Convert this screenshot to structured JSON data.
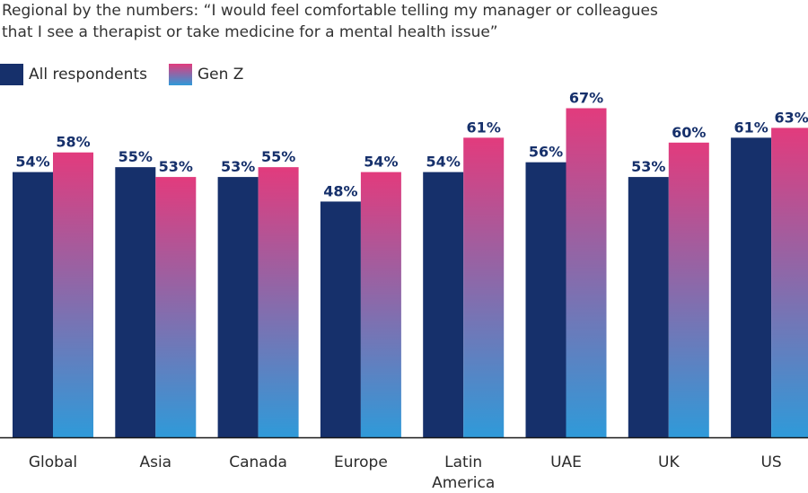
{
  "chart_data": {
    "type": "bar",
    "title_lines": [
      "Regional by the numbers:  “I would feel comfortable telling my manager or colleagues",
      "that I see a therapist or take medicine for a mental health issue”"
    ],
    "categories": [
      [
        "Global"
      ],
      [
        "Asia"
      ],
      [
        "Canada"
      ],
      [
        "Europe"
      ],
      [
        "Latin",
        "America"
      ],
      [
        "UAE"
      ],
      [
        "UK"
      ],
      [
        "US"
      ]
    ],
    "series": [
      {
        "name": "All respondents",
        "values": [
          54,
          55,
          53,
          48,
          54,
          56,
          53,
          61
        ],
        "labels": [
          "54%",
          "55%",
          "53%",
          "48%",
          "54%",
          "56%",
          "53%",
          "61%"
        ]
      },
      {
        "name": "Gen Z",
        "values": [
          58,
          53,
          55,
          54,
          61,
          67,
          60,
          63
        ],
        "labels": [
          "58%",
          "53%",
          "55%",
          "54%",
          "61%",
          "67%",
          "60%",
          "63%"
        ]
      }
    ],
    "ylim": [
      0,
      100
    ],
    "grid": false,
    "colors": {
      "all_respondents": "#16306b",
      "genz_top": "#e23b7d",
      "genz_bottom": "#2f9ad9",
      "label": "#16306b",
      "axis": "#1a1a1a"
    }
  }
}
